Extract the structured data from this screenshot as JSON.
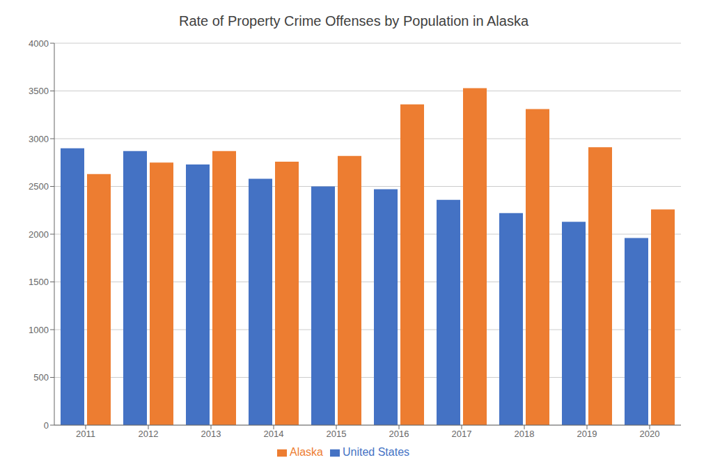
{
  "chart_data": {
    "type": "bar",
    "title": "Rate of Property Crime Offenses by Population in Alaska",
    "categories": [
      "2011",
      "2012",
      "2013",
      "2014",
      "2015",
      "2016",
      "2017",
      "2018",
      "2019",
      "2020"
    ],
    "series": [
      {
        "name": "United States",
        "color": "#4472C4",
        "values": [
          2900,
          2870,
          2730,
          2580,
          2500,
          2470,
          2360,
          2220,
          2130,
          1960
        ]
      },
      {
        "name": "Alaska",
        "color": "#ED7D31",
        "values": [
          2630,
          2750,
          2870,
          2760,
          2820,
          3360,
          3530,
          3310,
          2910,
          2260
        ]
      }
    ],
    "ylim": [
      0,
      4000
    ],
    "yticks": [
      0,
      500,
      1000,
      1500,
      2000,
      2500,
      3000,
      3500,
      4000
    ],
    "grid": true,
    "legend": "bottom"
  }
}
